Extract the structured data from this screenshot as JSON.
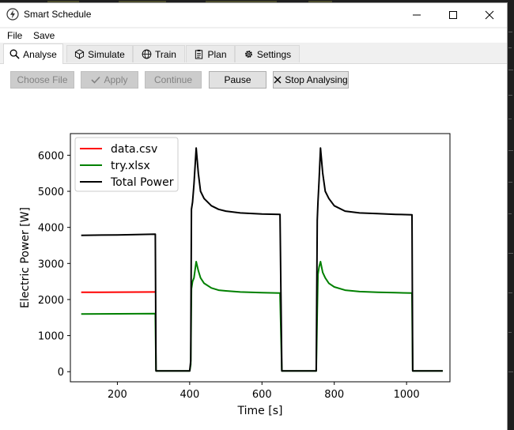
{
  "window": {
    "title": "Smart Schedule",
    "minimize_icon": "minimize-icon",
    "maximize_icon": "maximize-icon",
    "close_icon": "close-icon"
  },
  "menu": {
    "items": [
      "File",
      "Save"
    ]
  },
  "tabs": [
    {
      "label": "Analyse",
      "icon": "search-icon",
      "active": true
    },
    {
      "label": "Simulate",
      "icon": "cube-icon",
      "active": false
    },
    {
      "label": "Train",
      "icon": "globe-icon",
      "active": false
    },
    {
      "label": "Plan",
      "icon": "clipboard-icon",
      "active": false
    },
    {
      "label": "Settings",
      "icon": "gear-icon",
      "active": false
    }
  ],
  "toolbar": {
    "choose_file": {
      "label": "Choose File",
      "enabled": false
    },
    "apply": {
      "label": "Apply",
      "enabled": false
    },
    "continue": {
      "label": "Continue",
      "enabled": false
    },
    "pause": {
      "label": "Pause",
      "enabled": true
    },
    "stop": {
      "label": "Stop Analysing",
      "enabled": true
    }
  },
  "chart_data": {
    "type": "line",
    "title": "",
    "xlabel": "Time [s]",
    "ylabel": "Electric Power [W]",
    "xlim": [
      70,
      1120
    ],
    "ylim": [
      -280,
      6600
    ],
    "xticks": [
      200,
      400,
      600,
      800,
      1000
    ],
    "yticks": [
      0,
      1000,
      2000,
      3000,
      4000,
      5000,
      6000
    ],
    "grid": false,
    "legend": "top-left",
    "series": [
      {
        "name": "data.csv",
        "color": "#ff0000",
        "points": [
          [
            100,
            2200
          ],
          [
            305,
            2210
          ]
        ]
      },
      {
        "name": "try.xlsx",
        "color": "#008000",
        "points": [
          [
            100,
            1600
          ],
          [
            305,
            1610
          ],
          [
            307,
            20
          ],
          [
            400,
            20
          ],
          [
            403,
            200
          ],
          [
            405,
            2300
          ],
          [
            408,
            2500
          ],
          [
            412,
            2600
          ],
          [
            418,
            3050
          ],
          [
            424,
            2800
          ],
          [
            430,
            2600
          ],
          [
            440,
            2450
          ],
          [
            460,
            2320
          ],
          [
            480,
            2260
          ],
          [
            500,
            2240
          ],
          [
            540,
            2210
          ],
          [
            600,
            2190
          ],
          [
            650,
            2180
          ],
          [
            655,
            20
          ],
          [
            750,
            20
          ],
          [
            753,
            1700
          ],
          [
            755,
            2700
          ],
          [
            758,
            2900
          ],
          [
            762,
            3050
          ],
          [
            768,
            2750
          ],
          [
            775,
            2600
          ],
          [
            785,
            2450
          ],
          [
            800,
            2350
          ],
          [
            830,
            2260
          ],
          [
            870,
            2220
          ],
          [
            920,
            2200
          ],
          [
            970,
            2190
          ],
          [
            1015,
            2180
          ],
          [
            1017,
            20
          ],
          [
            1100,
            20
          ]
        ]
      },
      {
        "name": "Total Power",
        "color": "#000000",
        "points": [
          [
            100,
            3780
          ],
          [
            200,
            3790
          ],
          [
            305,
            3810
          ],
          [
            307,
            20
          ],
          [
            400,
            20
          ],
          [
            403,
            300
          ],
          [
            405,
            4500
          ],
          [
            408,
            4700
          ],
          [
            412,
            5200
          ],
          [
            418,
            6200
          ],
          [
            424,
            5500
          ],
          [
            430,
            5000
          ],
          [
            440,
            4800
          ],
          [
            460,
            4600
          ],
          [
            480,
            4500
          ],
          [
            500,
            4450
          ],
          [
            540,
            4400
          ],
          [
            600,
            4370
          ],
          [
            650,
            4360
          ],
          [
            655,
            20
          ],
          [
            750,
            20
          ],
          [
            753,
            4200
          ],
          [
            755,
            4700
          ],
          [
            758,
            5300
          ],
          [
            762,
            6200
          ],
          [
            768,
            5500
          ],
          [
            775,
            5000
          ],
          [
            785,
            4800
          ],
          [
            800,
            4600
          ],
          [
            830,
            4450
          ],
          [
            870,
            4400
          ],
          [
            920,
            4380
          ],
          [
            970,
            4360
          ],
          [
            1015,
            4350
          ],
          [
            1017,
            20
          ],
          [
            1100,
            20
          ]
        ]
      }
    ]
  }
}
